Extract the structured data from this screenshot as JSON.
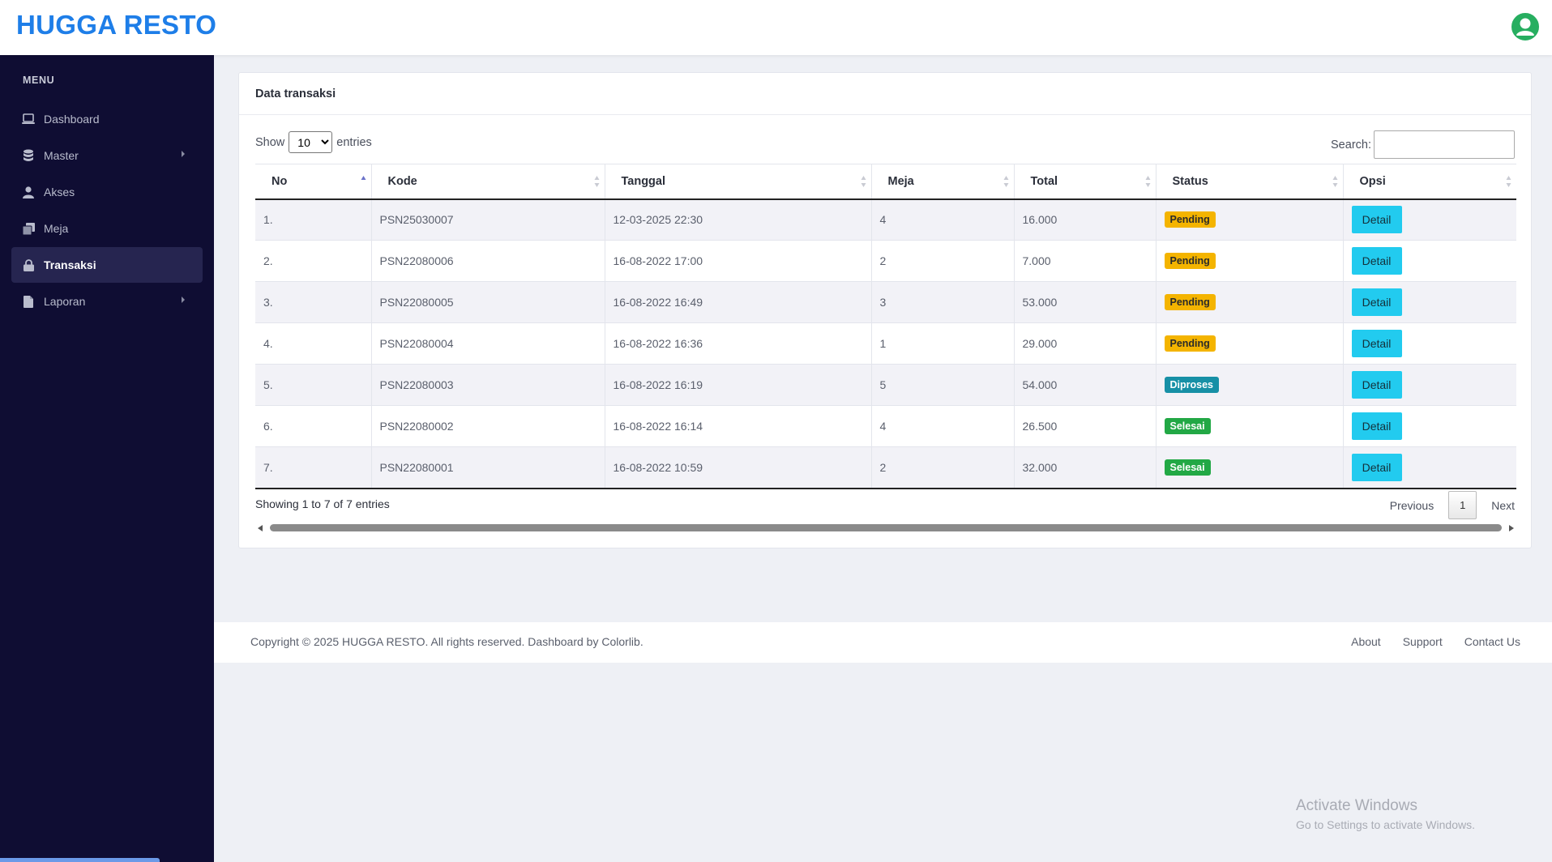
{
  "brand": "HUGGA RESTO",
  "sidebar": {
    "menu_label": "MENU",
    "items": [
      {
        "label": "Dashboard",
        "icon": "laptop-icon"
      },
      {
        "label": "Master",
        "icon": "database-icon"
      },
      {
        "label": "Akses",
        "icon": "user-icon"
      },
      {
        "label": "Meja",
        "icon": "copy-icon"
      },
      {
        "label": "Transaksi",
        "icon": "lock-icon"
      },
      {
        "label": "Laporan",
        "icon": "file-icon"
      }
    ]
  },
  "card": {
    "title": "Data transaksi",
    "show_prefix": "Show",
    "show_value": "10",
    "show_suffix": "entries",
    "search_label": "Search:",
    "search_value": ""
  },
  "table": {
    "headers": [
      "No",
      "Kode",
      "Tanggal",
      "Meja",
      "Total",
      "Status",
      "Opsi"
    ],
    "rows": [
      {
        "no": "1.",
        "kode": "PSN25030007",
        "tanggal": "12-03-2025 22:30",
        "meja": "4",
        "total": "16.000",
        "status": "Pending",
        "opsi": "Detail"
      },
      {
        "no": "2.",
        "kode": "PSN22080006",
        "tanggal": "16-08-2022 17:00",
        "meja": "2",
        "total": "7.000",
        "status": "Pending",
        "opsi": "Detail"
      },
      {
        "no": "3.",
        "kode": "PSN22080005",
        "tanggal": "16-08-2022 16:49",
        "meja": "3",
        "total": "53.000",
        "status": "Pending",
        "opsi": "Detail"
      },
      {
        "no": "4.",
        "kode": "PSN22080004",
        "tanggal": "16-08-2022 16:36",
        "meja": "1",
        "total": "29.000",
        "status": "Pending",
        "opsi": "Detail"
      },
      {
        "no": "5.",
        "kode": "PSN22080003",
        "tanggal": "16-08-2022 16:19",
        "meja": "5",
        "total": "54.000",
        "status": "Diproses",
        "opsi": "Detail"
      },
      {
        "no": "6.",
        "kode": "PSN22080002",
        "tanggal": "16-08-2022 16:14",
        "meja": "4",
        "total": "26.500",
        "status": "Selesai",
        "opsi": "Detail"
      },
      {
        "no": "7.",
        "kode": "PSN22080001",
        "tanggal": "16-08-2022 10:59",
        "meja": "2",
        "total": "32.000",
        "status": "Selesai",
        "opsi": "Detail"
      }
    ]
  },
  "pagination": {
    "info": "Showing 1 to 7 of 7 entries",
    "previous": "Previous",
    "current_page": "1",
    "next": "Next"
  },
  "footer": {
    "copyright": "Copyright © 2025 HUGGA RESTO. All rights reserved. Dashboard by Colorlib.",
    "links": [
      "About",
      "Support",
      "Contact Us"
    ]
  },
  "watermark": {
    "title": "Activate Windows",
    "subtitle": "Go to Settings to activate Windows."
  },
  "colors": {
    "brand": "#1e7ee8",
    "sidebar_bg": "#0f0d33",
    "pending": "#f4b400",
    "diproses": "#1790a6",
    "selesai": "#22a845",
    "detail_button": "#22cbef"
  }
}
